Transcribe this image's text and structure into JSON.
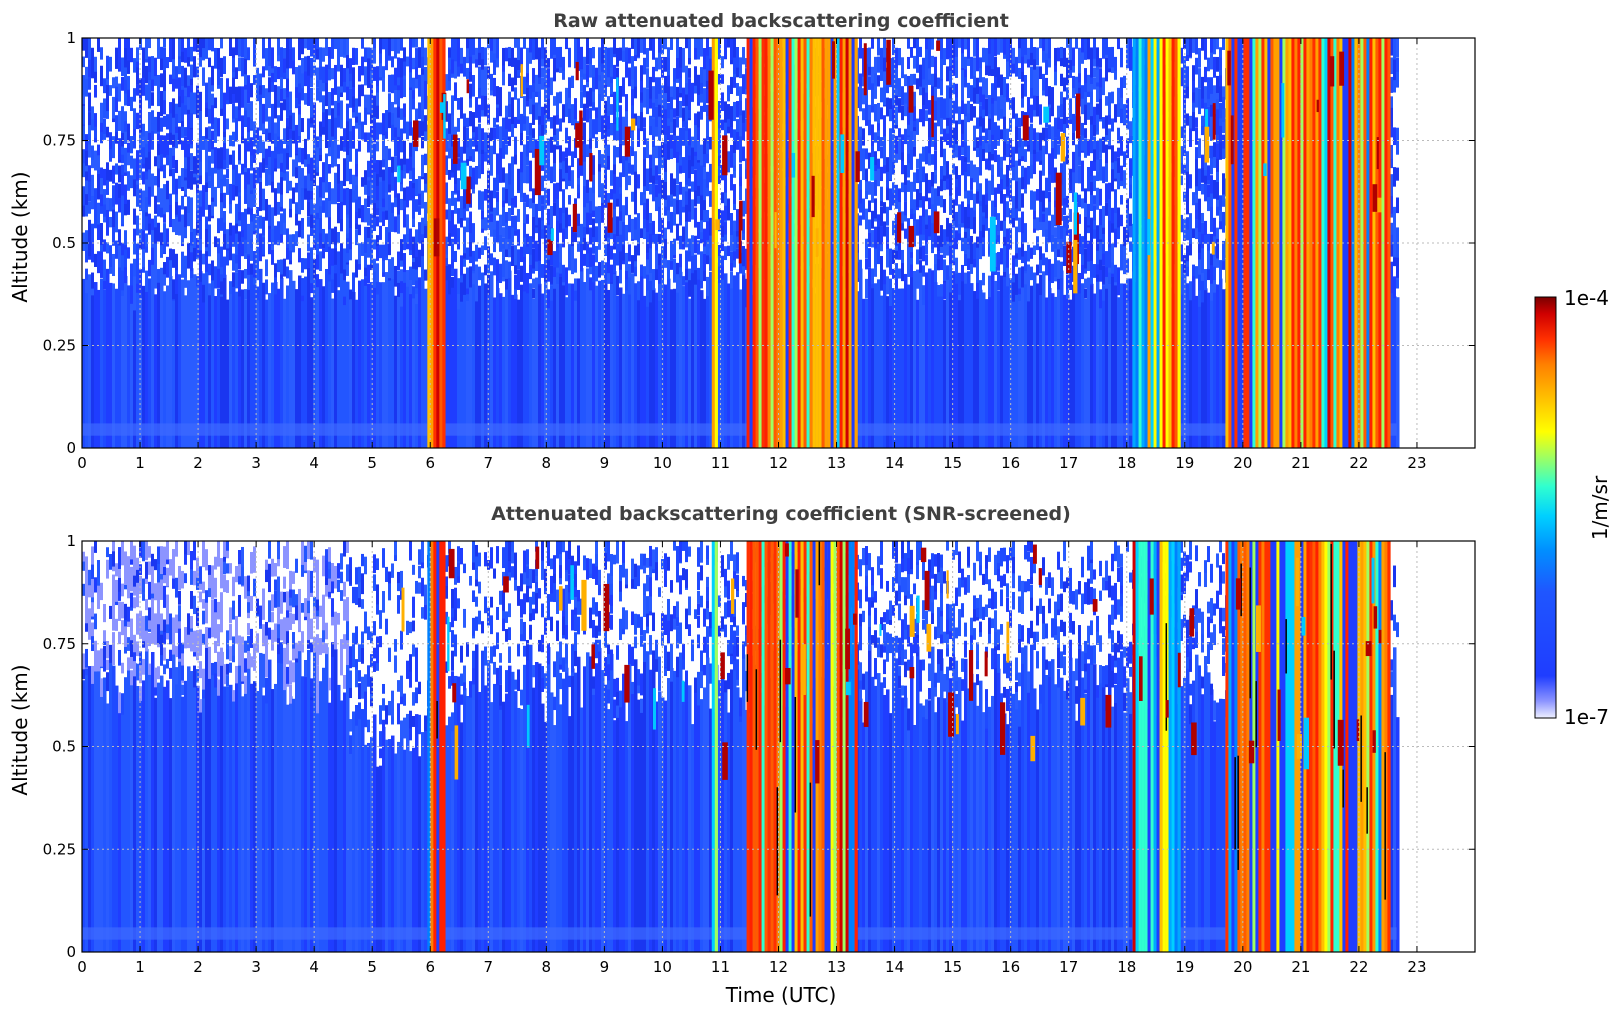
{
  "colorbar": {
    "label": "1/m/sr",
    "max_label": "1e-4",
    "min_label": "1e-7",
    "scale": "log",
    "colormap": [
      "#eef0ff",
      "#8c94ff",
      "#1f3dff",
      "#1f56ff",
      "#0090ff",
      "#00d0ff",
      "#30ffcf",
      "#a0ff60",
      "#ffff00",
      "#ffc000",
      "#ff8000",
      "#ff3000",
      "#d00000",
      "#7a0000"
    ]
  },
  "chart_data": [
    {
      "type": "heatmap",
      "title": "Raw attenuated backscattering coefficient",
      "ylabel": "Altitude (km)",
      "xlabel": "",
      "xlim": [
        0,
        24
      ],
      "ylim": [
        0,
        1
      ],
      "x_ticks": [
        "0",
        "1",
        "2",
        "3",
        "4",
        "5",
        "6",
        "7",
        "8",
        "9",
        "10",
        "11",
        "12",
        "13",
        "14",
        "15",
        "16",
        "17",
        "18",
        "19",
        "20",
        "21",
        "22",
        "23"
      ],
      "y_ticks": [
        "0",
        "0.25",
        "0.5",
        "0.75",
        "1"
      ],
      "y_tick_values": [
        0,
        0.25,
        0.5,
        0.75,
        1
      ],
      "grid": true,
      "data_end_x": 22.65,
      "screened": false,
      "cloud_bands": [
        {
          "x": [
            5.95,
            6.25
          ],
          "level": "high"
        },
        {
          "x": [
            10.85,
            10.95
          ],
          "level": "medium"
        },
        {
          "x": [
            11.45,
            13.35
          ],
          "level": "high"
        },
        {
          "x": [
            18.1,
            18.9
          ],
          "level": "medium"
        },
        {
          "x": [
            19.7,
            22.5
          ],
          "level": "high"
        }
      ]
    },
    {
      "type": "heatmap",
      "title": "Attenuated backscattering coefficient (SNR-screened)",
      "ylabel": "Altitude (km)",
      "xlabel": "Time (UTC)",
      "xlim": [
        0,
        24
      ],
      "ylim": [
        0,
        1
      ],
      "x_ticks": [
        "0",
        "1",
        "2",
        "3",
        "4",
        "5",
        "6",
        "7",
        "8",
        "9",
        "10",
        "11",
        "12",
        "13",
        "14",
        "15",
        "16",
        "17",
        "18",
        "19",
        "20",
        "21",
        "22",
        "23"
      ],
      "y_ticks": [
        "0",
        "0.25",
        "0.5",
        "0.75",
        "1"
      ],
      "y_tick_values": [
        0,
        0.25,
        0.5,
        0.75,
        1
      ],
      "grid": true,
      "data_end_x": 22.65,
      "screened": true,
      "cloud_bands": [
        {
          "x": [
            5.95,
            6.25
          ],
          "level": "high"
        },
        {
          "x": [
            10.85,
            10.95
          ],
          "level": "medium"
        },
        {
          "x": [
            11.45,
            13.35
          ],
          "level": "high"
        },
        {
          "x": [
            18.1,
            18.9
          ],
          "level": "medium"
        },
        {
          "x": [
            19.7,
            22.5
          ],
          "level": "high"
        }
      ]
    }
  ]
}
